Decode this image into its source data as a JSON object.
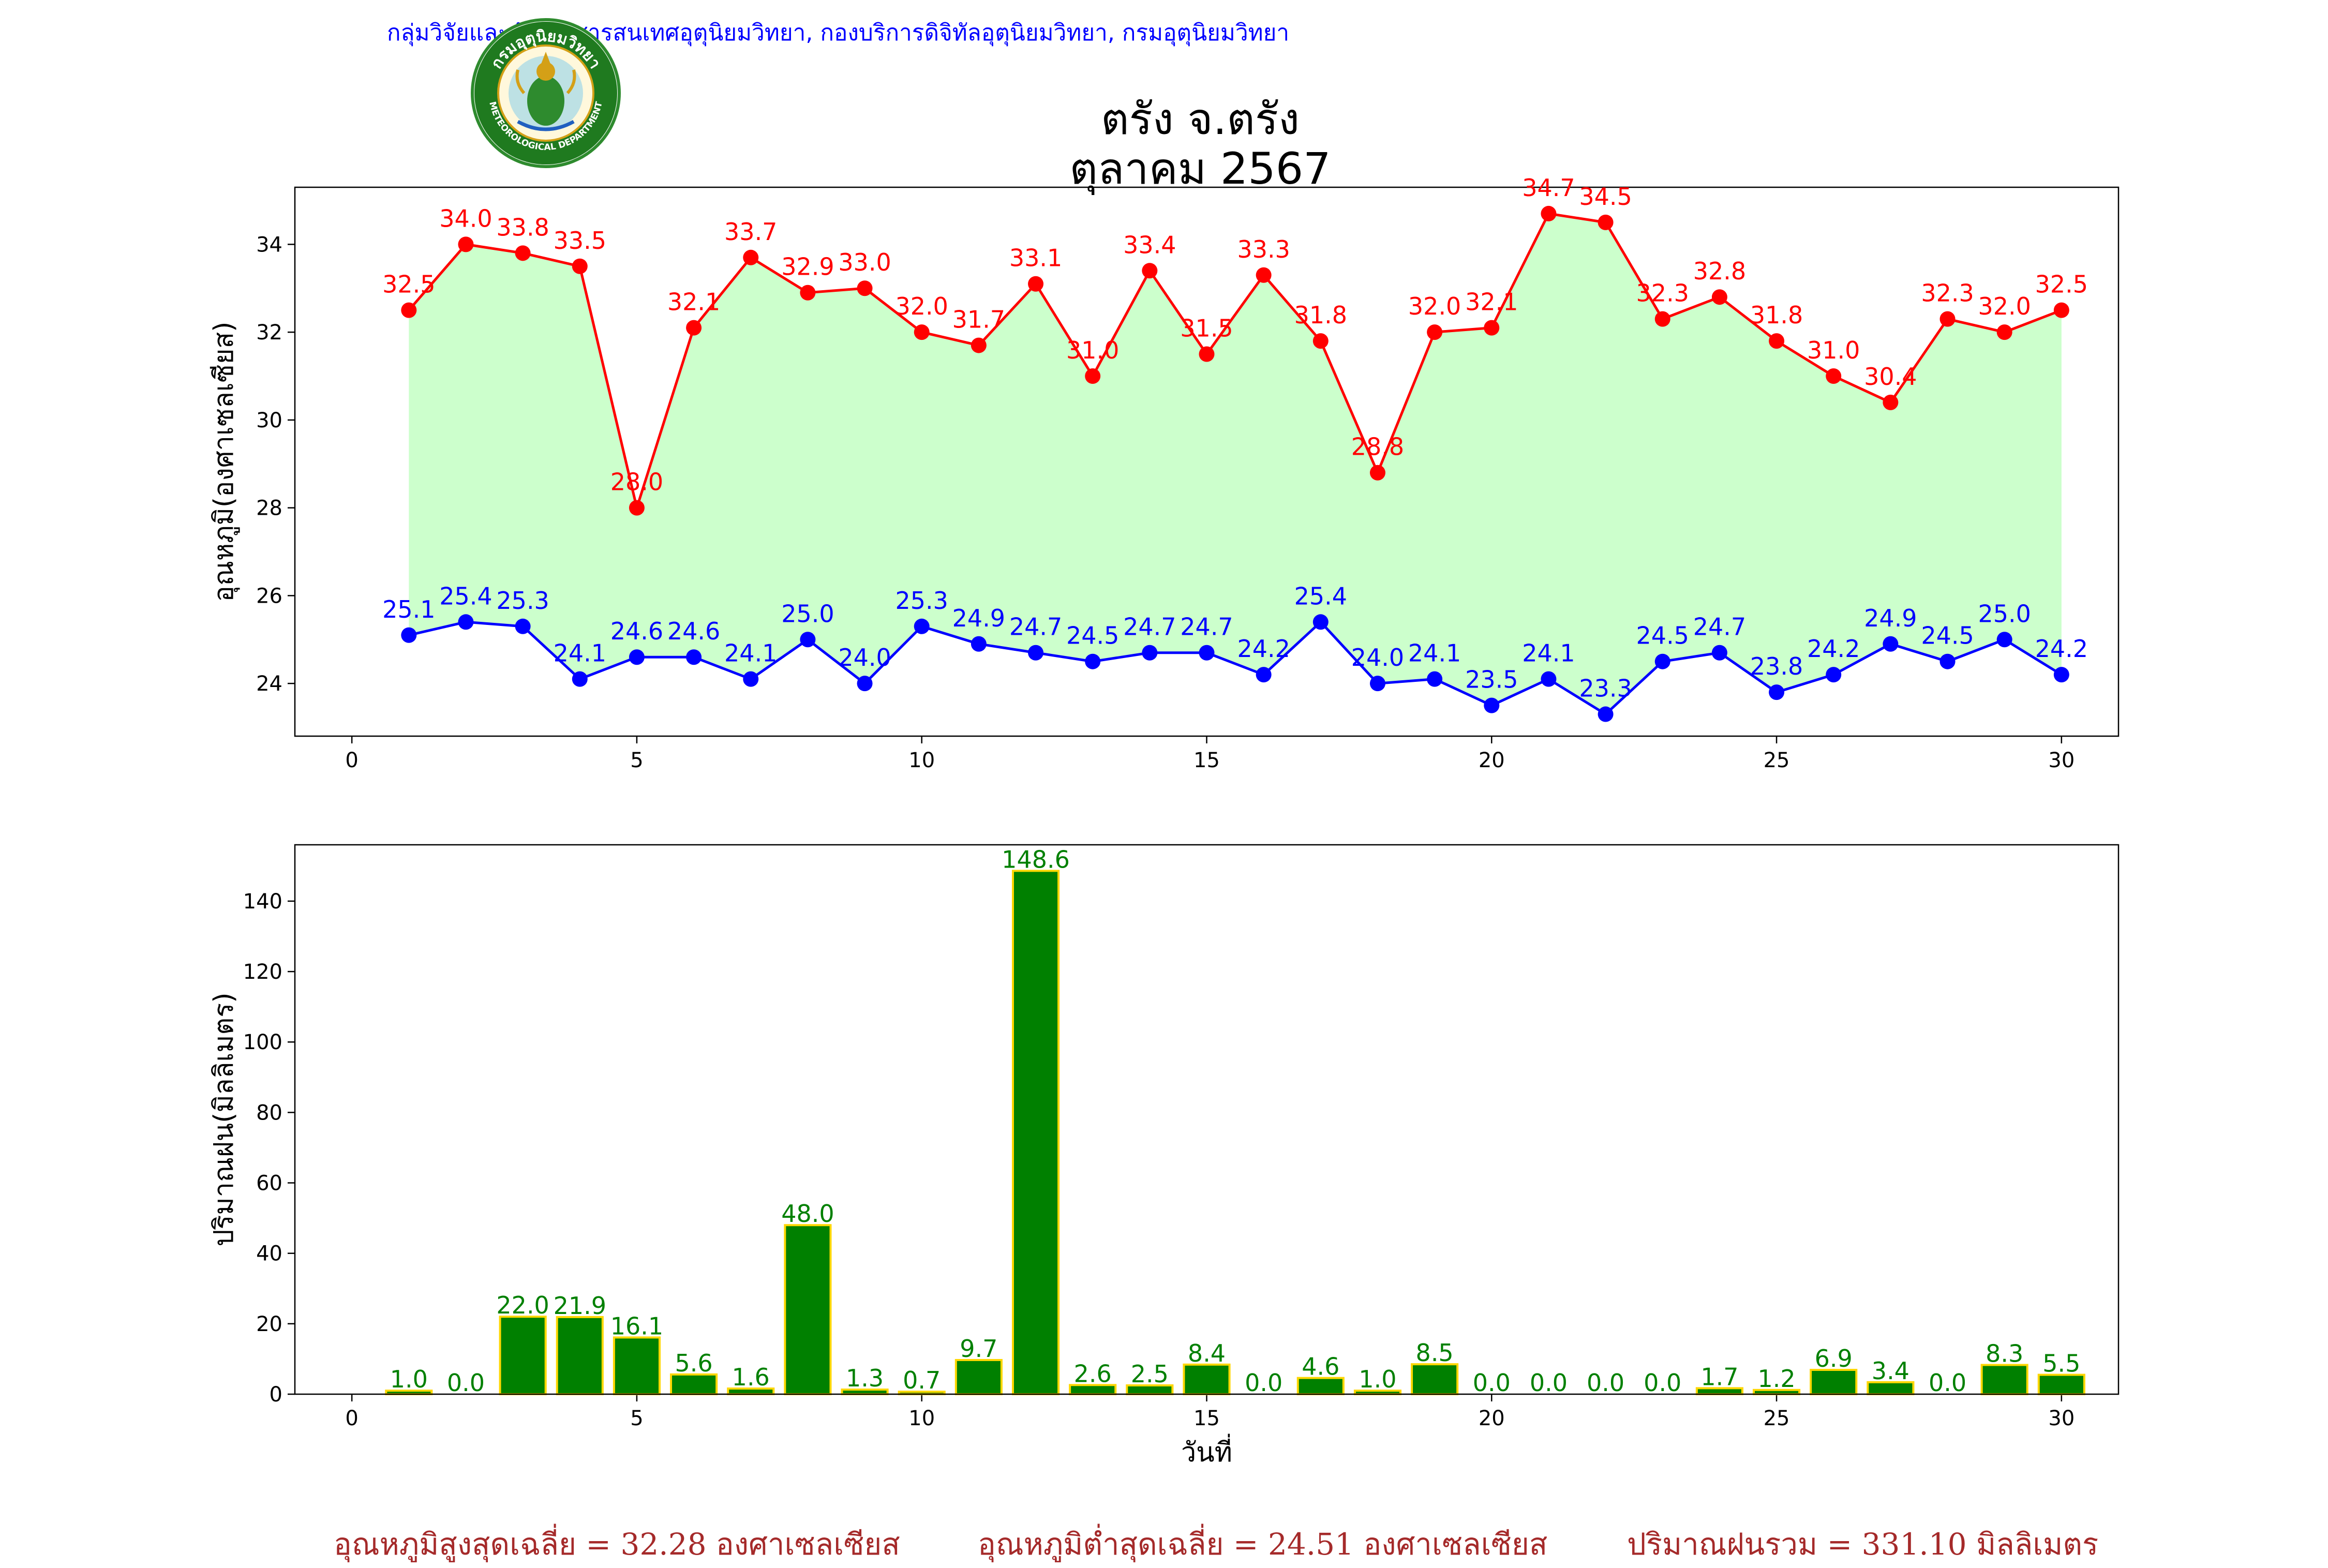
{
  "header": {
    "org_text": "กลุ่มวิจัยและพัฒนาสารสนเทศอุตุนิยมวิทยา, กองบริการดิจิทัลอุตุนิยมวิทยา, กรมอุตุนิยมวิทยา",
    "logo_icon": "meteorological-department-seal-icon",
    "logo_text_top": "กรมอุตุนิยมวิทยา",
    "logo_text_bottom": "METEOROLOGICAL DEPARTMENT",
    "title_line1": "ตรัง จ.ตรัง",
    "title_line2": "ตุลาคม 2567"
  },
  "colors": {
    "max_line": "#ff0000",
    "min_line": "#0000ff",
    "fill_between": "#ccffcc",
    "bar_fill": "#008000",
    "bar_edge": "#ffd700",
    "bar_label": "#008000",
    "footer_text": "#a52a2a",
    "header_text": "#0000ff"
  },
  "chart_data": [
    {
      "type": "line",
      "ylabel": "อุณหภูมิ(องศาเซลเซียส)",
      "xlabel": "",
      "xlim": [
        -1,
        31
      ],
      "ylim": [
        22.8,
        35.3
      ],
      "xticks": [
        0,
        5,
        10,
        15,
        20,
        25,
        30
      ],
      "yticks": [
        24,
        26,
        28,
        30,
        32,
        34
      ],
      "grid": false,
      "fill_between": true,
      "x": [
        1,
        2,
        3,
        4,
        5,
        6,
        7,
        8,
        9,
        10,
        11,
        12,
        13,
        14,
        15,
        16,
        17,
        18,
        19,
        20,
        21,
        22,
        23,
        24,
        25,
        26,
        27,
        28,
        29,
        30
      ],
      "series": [
        {
          "values": [
            32.5,
            34.0,
            33.8,
            33.5,
            28.0,
            32.1,
            33.7,
            32.9,
            33.0,
            32.0,
            31.7,
            33.1,
            31.0,
            33.4,
            31.5,
            33.3,
            31.8,
            28.8,
            32.0,
            32.1,
            34.7,
            34.5,
            32.3,
            32.8,
            31.8,
            31.0,
            30.4,
            32.3,
            32.0,
            32.5
          ]
        },
        {
          "values": [
            25.1,
            25.4,
            25.3,
            24.1,
            24.6,
            24.6,
            24.1,
            25.0,
            24.0,
            25.3,
            24.9,
            24.7,
            24.5,
            24.7,
            24.7,
            24.2,
            25.4,
            24.0,
            24.1,
            23.5,
            24.1,
            23.3,
            24.5,
            24.7,
            23.8,
            24.2,
            24.9,
            24.5,
            25.0,
            24.2
          ]
        }
      ]
    },
    {
      "type": "bar",
      "ylabel": "ปริมาณฝน(มิลลิเมตร)",
      "xlabel": "วันที่",
      "xlim": [
        -1,
        31
      ],
      "ylim": [
        0,
        156
      ],
      "xticks": [
        0,
        5,
        10,
        15,
        20,
        25,
        30
      ],
      "yticks": [
        0,
        20,
        40,
        60,
        80,
        100,
        120,
        140
      ],
      "grid": false,
      "x": [
        1,
        2,
        3,
        4,
        5,
        6,
        7,
        8,
        9,
        10,
        11,
        12,
        13,
        14,
        15,
        16,
        17,
        18,
        19,
        20,
        21,
        22,
        23,
        24,
        25,
        26,
        27,
        28,
        29,
        30
      ],
      "values": [
        1.0,
        0.0,
        22.0,
        21.9,
        16.1,
        5.6,
        1.6,
        48.0,
        1.3,
        0.7,
        9.7,
        148.6,
        2.6,
        2.5,
        8.4,
        0.0,
        4.6,
        1.0,
        8.5,
        0.0,
        0.0,
        0.0,
        0.0,
        1.7,
        1.2,
        6.9,
        3.4,
        0.0,
        8.3,
        5.5
      ]
    }
  ],
  "footer": {
    "avg_max": "อุณหภูมิสูงสุดเฉลี่ย = 32.28 องศาเซลเซียส",
    "avg_min": "อุณหภูมิต่ำสุดเฉลี่ย = 24.51 องศาเซลเซียส",
    "rain_total": "ปริมาณฝนรวม = 331.10 มิลลิเมตร"
  }
}
